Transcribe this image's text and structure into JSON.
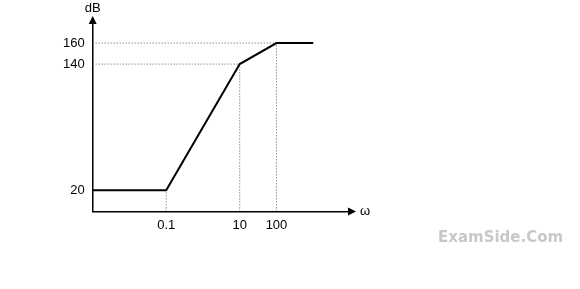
{
  "chart_data": {
    "type": "line",
    "x_label": "ω",
    "y_label": "dB",
    "x": [
      0.001,
      0.1,
      10,
      100,
      1000
    ],
    "values": [
      20,
      20,
      140,
      160,
      160
    ],
    "color": "#000000",
    "log": "x",
    "xlim": [
      0.001,
      10000
    ],
    "xticks": [
      0.1,
      10,
      100
    ],
    "ylim": [
      0,
      180
    ],
    "yticks": [
      20,
      140,
      160
    ],
    "grid": false,
    "annotation": "ExamSide.Com"
  }
}
